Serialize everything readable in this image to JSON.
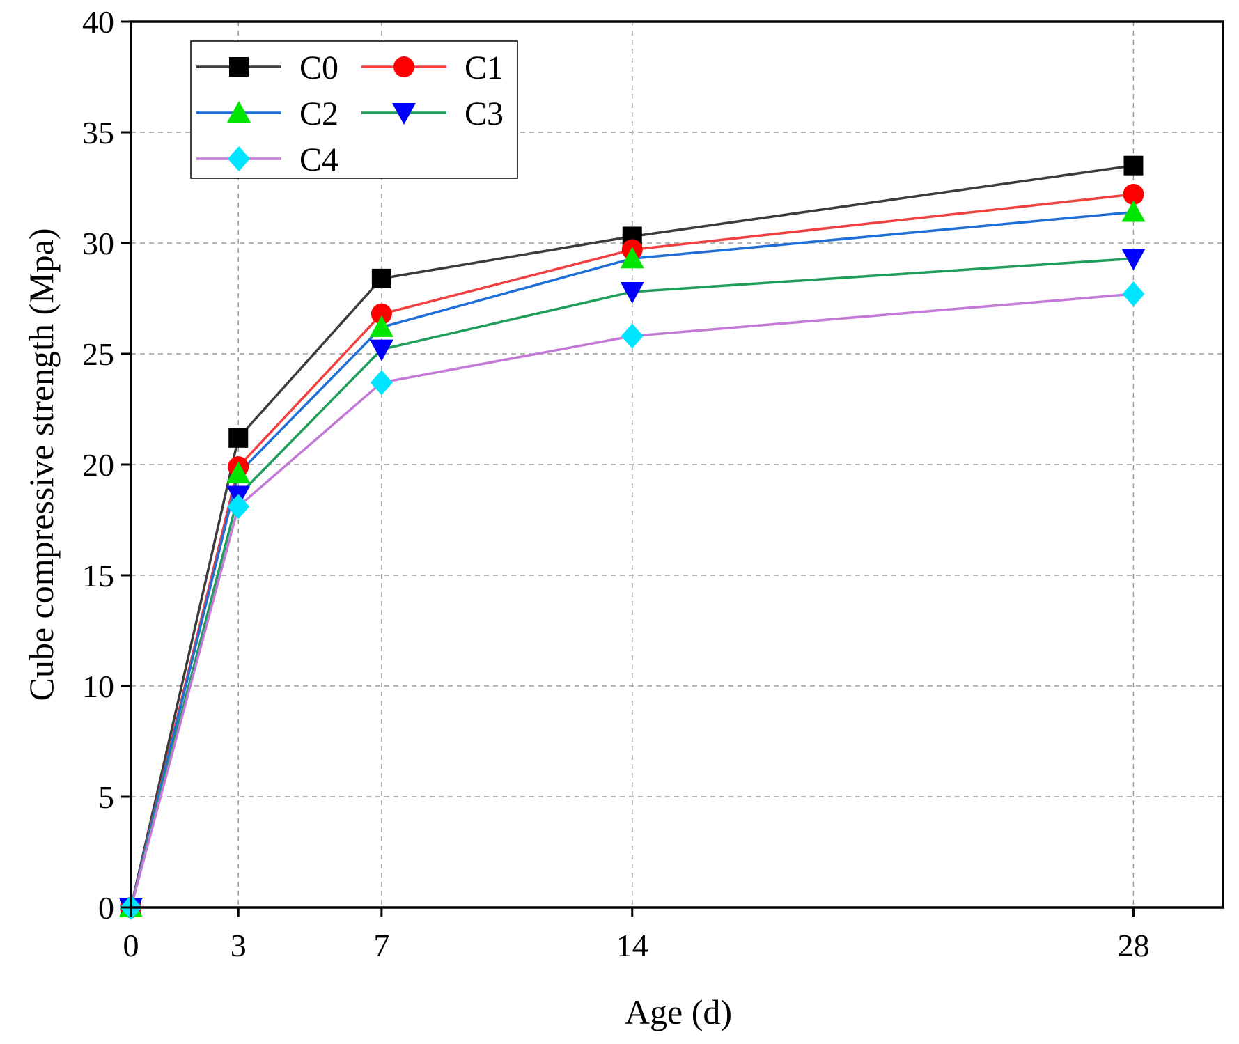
{
  "chart_data": {
    "type": "line",
    "title": "",
    "xlabel": "Age (d)",
    "ylabel": "Cube compressive strength (Mpa)",
    "x": [
      0,
      3,
      7,
      14,
      28
    ],
    "xticks": [
      0,
      3,
      7,
      14,
      28
    ],
    "xlim": [
      0,
      30.5
    ],
    "yticks": [
      0,
      5,
      10,
      15,
      20,
      25,
      30,
      35,
      40
    ],
    "ylim": [
      0,
      40
    ],
    "grid": true,
    "legend_position": "top-left",
    "series": [
      {
        "name": "C0",
        "values": [
          0,
          21.2,
          28.4,
          30.3,
          33.5
        ],
        "line_color": "#3c3c3c",
        "marker": "square",
        "marker_color": "#000000"
      },
      {
        "name": "C1",
        "values": [
          0,
          19.9,
          26.8,
          29.7,
          32.2
        ],
        "line_color": "#f04040",
        "marker": "circle",
        "marker_color": "#ff0000"
      },
      {
        "name": "C2",
        "values": [
          0,
          19.6,
          26.2,
          29.3,
          31.4
        ],
        "line_color": "#1f6fd6",
        "marker": "triangle-up",
        "marker_color": "#00e600"
      },
      {
        "name": "C3",
        "values": [
          0,
          18.6,
          25.2,
          27.8,
          29.3
        ],
        "line_color": "#1e9e5a",
        "marker": "triangle-down",
        "marker_color": "#0000ff"
      },
      {
        "name": "C4",
        "values": [
          0,
          18.1,
          23.7,
          25.8,
          27.7
        ],
        "line_color": "#c27ad6",
        "marker": "diamond",
        "marker_color": "#00e5ff"
      }
    ]
  }
}
